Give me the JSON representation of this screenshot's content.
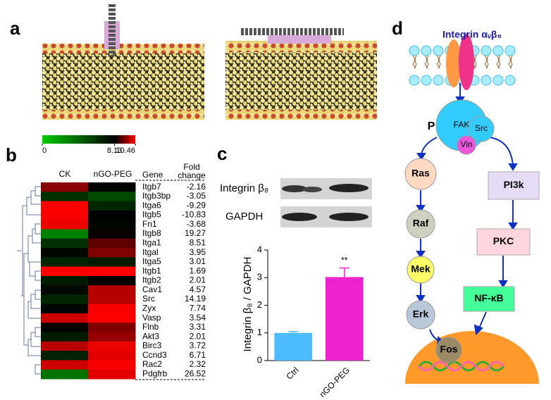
{
  "panel_labels": [
    "a",
    "b",
    "c",
    "d"
  ],
  "heatmap": {
    "colorbar": {
      "ticks": [
        0,
        8.13,
        10.46
      ],
      "colors": [
        "#00cc00",
        "#000000",
        "#ff0000"
      ]
    },
    "columns": [
      "CK",
      "nGO-PEG"
    ],
    "gene_header": "Gene",
    "fold_header": [
      "Fold",
      "change"
    ],
    "genes": [
      "Itgb7",
      "Itgb3bp",
      "Itga6",
      "Itgb5",
      "Fn1",
      "Itgb8",
      "Itga1",
      "Itgal",
      "Itga5",
      "Itgb1",
      "Itgb2",
      "Cav1",
      "Src",
      "Zyx",
      "Vasp",
      "Flnb",
      "Akt3",
      "Birc3",
      "Ccnd3",
      "Rac2",
      "Pdgfrb"
    ],
    "fold_change": [
      -2.16,
      -3.05,
      -9.29,
      -10.83,
      -3.68,
      19.27,
      8.51,
      3.95,
      3.01,
      1.69,
      2.01,
      4.57,
      14.19,
      7.74,
      3.54,
      3.31,
      2.01,
      3.72,
      6.71,
      2.32,
      26.52
    ],
    "values": [
      [
        9.4,
        8.0
      ],
      [
        6.2,
        5.2
      ],
      [
        10.46,
        6.6
      ],
      [
        10.4,
        8.1
      ],
      [
        10.3,
        7.9
      ],
      [
        3.0,
        8.2
      ],
      [
        6.2,
        9.0
      ],
      [
        7.8,
        9.3
      ],
      [
        6.6,
        7.0
      ],
      [
        10.46,
        10.46
      ],
      [
        7.0,
        8.0
      ],
      [
        7.8,
        9.8
      ],
      [
        6.6,
        9.8
      ],
      [
        7.9,
        10.4
      ],
      [
        10.0,
        10.46
      ],
      [
        8.0,
        9.3
      ],
      [
        7.0,
        9.5
      ],
      [
        9.8,
        10.3
      ],
      [
        6.8,
        10.2
      ],
      [
        10.0,
        10.4
      ],
      [
        3.5,
        10.2
      ]
    ]
  },
  "blot": {
    "labels": [
      "Integrin β₈",
      "GAPDH"
    ]
  },
  "chart_data": {
    "type": "bar",
    "ylabel": "Integrin β₈ / GAPDH",
    "categories": [
      "Ctrl",
      "nGO-PEG"
    ],
    "values": [
      1.0,
      3.02
    ],
    "errors": [
      0.05,
      0.33
    ],
    "colors": [
      "#4dbbff",
      "#ee22cc"
    ],
    "annotations": [
      null,
      "**"
    ],
    "ylim": [
      0,
      4
    ],
    "yticks": [
      0,
      1,
      2,
      3,
      4
    ]
  },
  "pathway": {
    "receptor": "Integrin αᵥβ₈",
    "nodes": [
      {
        "label": "P",
        "color": "#ffffff"
      },
      {
        "label": "FAK",
        "color": "#33ccff"
      },
      {
        "label": "Src",
        "color": "#33ccff"
      },
      {
        "label": "Vin",
        "color": "#ee55dd"
      },
      {
        "label": "Ras",
        "color": "#ffd9c2"
      },
      {
        "label": "Raf",
        "color": "#cfd0c0"
      },
      {
        "label": "Mek",
        "color": "#ffff66"
      },
      {
        "label": "Erk",
        "color": "#b9c8d8"
      },
      {
        "label": "Fos",
        "color": "#9a8a66"
      },
      {
        "label": "PI3k",
        "color": "#e6dcf5"
      },
      {
        "label": "PKC",
        "color": "#ffd6de"
      },
      {
        "label": "NF-κB",
        "color": "#44ff99"
      }
    ]
  }
}
